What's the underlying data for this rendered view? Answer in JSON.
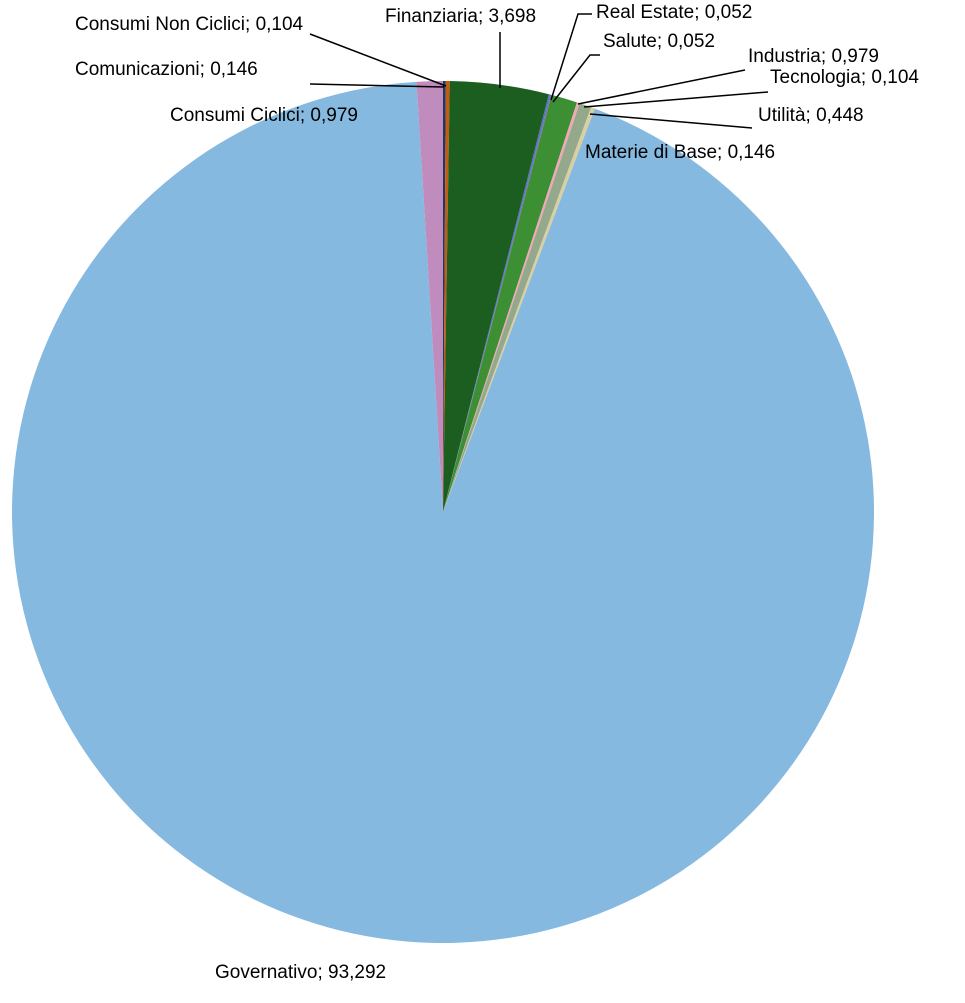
{
  "chart_data": {
    "type": "pie",
    "categories": [
      "Consumi Non Ciclici",
      "Comunicazioni",
      "Finanziaria",
      "Real Estate",
      "Salute",
      "Industria",
      "Tecnologia",
      "Utilità",
      "Materie di Base",
      "Governativo",
      "Consumi Ciclici"
    ],
    "values": [
      0.104,
      0.146,
      3.698,
      0.052,
      0.052,
      0.979,
      0.104,
      0.448,
      0.146,
      93.292,
      0.979
    ],
    "value_labels": [
      "0,104",
      "0,146",
      "3,698",
      "0,052",
      "0,052",
      "0,979",
      "0,104",
      "0,448",
      "0,146",
      "93,292",
      "0,979"
    ],
    "label_separator": "; ",
    "colors": [
      "#203864",
      "#c55a11",
      "#1b5e20",
      "#4472c4",
      "#7f6fb0",
      "#3d8f34",
      "#f2a7b4",
      "#94a88c",
      "#d9cfa0",
      "#86b9df",
      "#c08bbd"
    ]
  }
}
